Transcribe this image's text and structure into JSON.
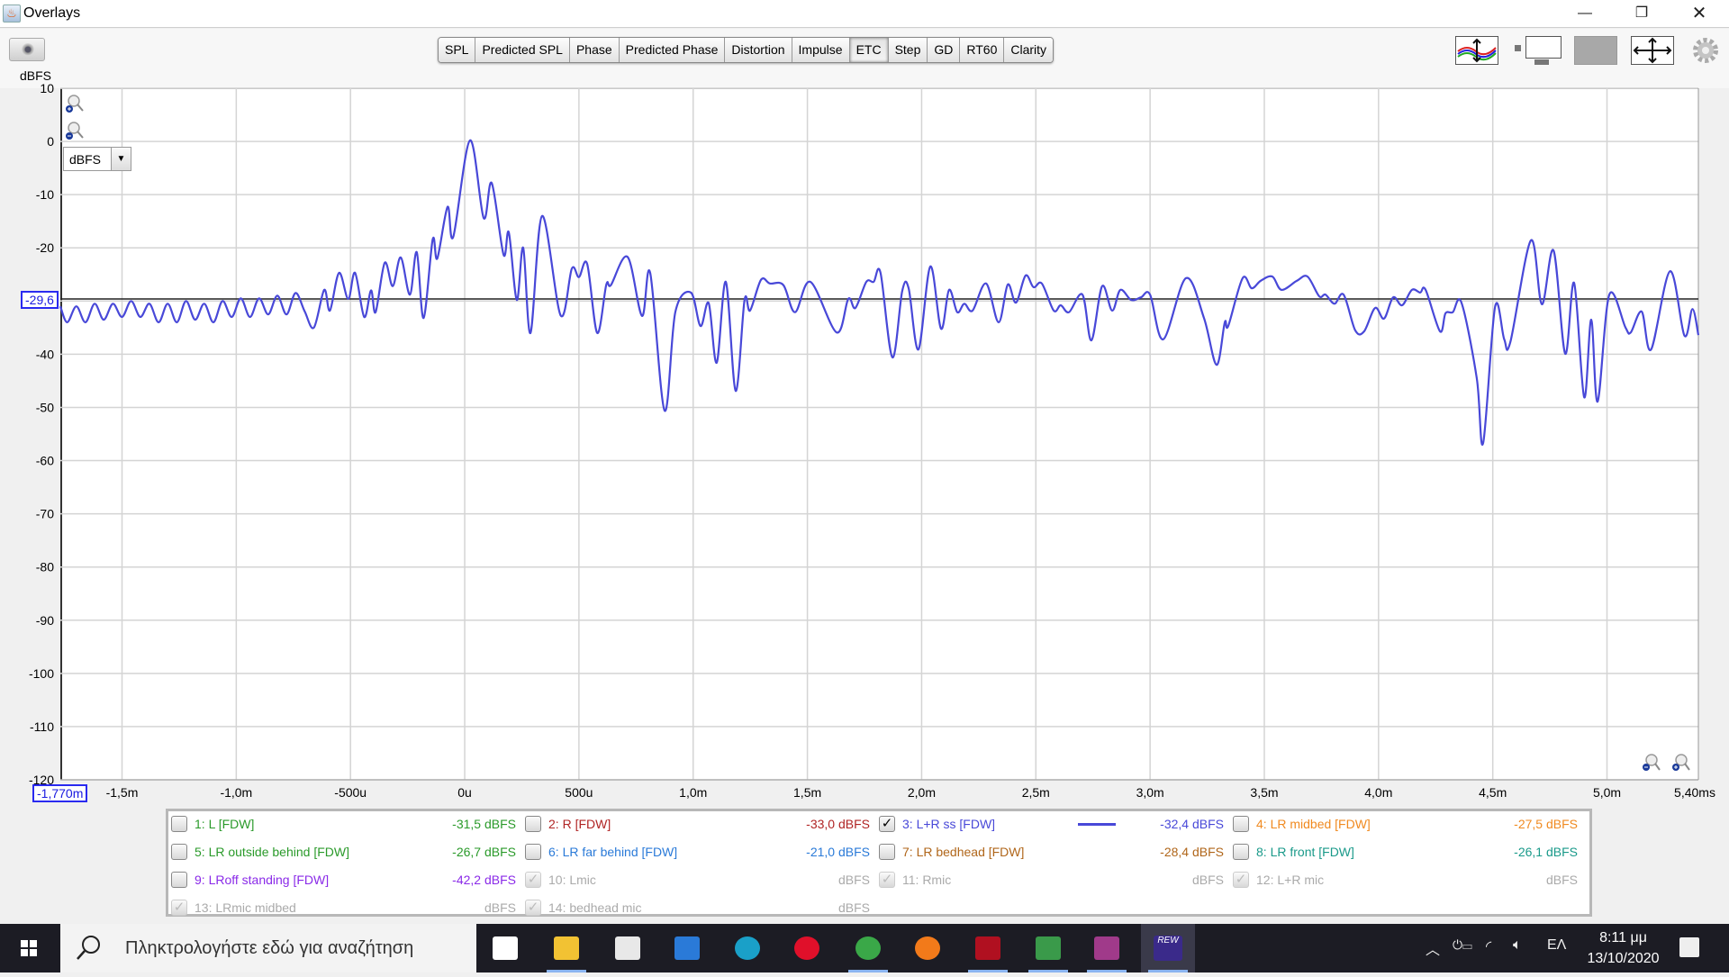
{
  "window": {
    "title": "Overlays",
    "controls": [
      "minimize",
      "restore",
      "close"
    ]
  },
  "toolbar": {
    "tabs": [
      "SPL",
      "Predicted SPL",
      "Phase",
      "Predicted Phase",
      "Distortion",
      "Impulse",
      "ETC",
      "Step",
      "GD",
      "RT60",
      "Clarity"
    ],
    "active_tab": "ETC",
    "right_icons": [
      "vertical-scale-icon",
      "axis-limits-icon",
      "columns-icon",
      "fit-all-icon",
      "gear-icon"
    ]
  },
  "graph": {
    "unit_select": "dBFS",
    "y_cursor": "-29,6",
    "x_cursor": "-1,770m"
  },
  "chart_data": {
    "type": "line",
    "ylabel": "dBFS",
    "ylim": [
      -120,
      10
    ],
    "xlim": [
      -1.77,
      5.4
    ],
    "x_unit": "ms",
    "grid": true,
    "yticks": [
      10,
      0,
      -10,
      -20,
      -30,
      -40,
      -50,
      -60,
      -70,
      -80,
      -90,
      -100,
      -110,
      -120
    ],
    "ytick_labels": [
      "10",
      "0",
      "-10",
      "-20",
      "",
      "-40",
      "-50",
      "-60",
      "-70",
      "-80",
      "-90",
      "-100",
      "-110",
      "-120"
    ],
    "xticks": [
      -1.5,
      -1.0,
      -0.5,
      0,
      0.5,
      1.0,
      1.5,
      2.0,
      2.5,
      3.0,
      3.5,
      4.0,
      4.5,
      5.0,
      5.4
    ],
    "xtick_labels": [
      "-1,5m",
      "-1,0m",
      "-500u",
      "0u",
      "500u",
      "1,0m",
      "1,5m",
      "2,0m",
      "2,5m",
      "3,0m",
      "3,5m",
      "4,0m",
      "4,5m",
      "5,0m",
      "5,40ms"
    ],
    "cursor_y": -29.6,
    "series": [
      {
        "color": "#4848d8",
        "points": [
          [
            -1.77,
            -31
          ],
          [
            -1.74,
            -34
          ],
          [
            -1.7,
            -31
          ],
          [
            -1.66,
            -34
          ],
          [
            -1.62,
            -30.5
          ],
          [
            -1.58,
            -33.5
          ],
          [
            -1.54,
            -30.5
          ],
          [
            -1.5,
            -33
          ],
          [
            -1.46,
            -30
          ],
          [
            -1.42,
            -33
          ],
          [
            -1.38,
            -30.5
          ],
          [
            -1.34,
            -34
          ],
          [
            -1.3,
            -30.5
          ],
          [
            -1.26,
            -34
          ],
          [
            -1.22,
            -30
          ],
          [
            -1.18,
            -33.5
          ],
          [
            -1.14,
            -30.5
          ],
          [
            -1.1,
            -34
          ],
          [
            -1.06,
            -30
          ],
          [
            -1.02,
            -33
          ],
          [
            -0.98,
            -29.5
          ],
          [
            -0.94,
            -33
          ],
          [
            -0.9,
            -29.5
          ],
          [
            -0.86,
            -32.5
          ],
          [
            -0.82,
            -29
          ],
          [
            -0.78,
            -32.5
          ],
          [
            -0.74,
            -28.5
          ],
          [
            -0.7,
            -32
          ],
          [
            -0.66,
            -35
          ],
          [
            -0.615,
            -27.9
          ],
          [
            -0.59,
            -31.8
          ],
          [
            -0.55,
            -24.7
          ],
          [
            -0.51,
            -29.6
          ],
          [
            -0.48,
            -24.7
          ],
          [
            -0.44,
            -33
          ],
          [
            -0.41,
            -28
          ],
          [
            -0.39,
            -32.1
          ],
          [
            -0.35,
            -22.8
          ],
          [
            -0.315,
            -27.2
          ],
          [
            -0.28,
            -21.8
          ],
          [
            -0.24,
            -28.8
          ],
          [
            -0.21,
            -20.8
          ],
          [
            -0.18,
            -33.2
          ],
          [
            -0.14,
            -18.4
          ],
          [
            -0.12,
            -22
          ],
          [
            -0.075,
            -12.3
          ],
          [
            -0.05,
            -17.9
          ],
          [
            0.023,
            0.2
          ],
          [
            0.083,
            -14.4
          ],
          [
            0.118,
            -7.8
          ],
          [
            0.17,
            -21.3
          ],
          [
            0.193,
            -17.1
          ],
          [
            0.228,
            -29.8
          ],
          [
            0.256,
            -20
          ],
          [
            0.288,
            -36
          ],
          [
            0.339,
            -14
          ],
          [
            0.42,
            -32.7
          ],
          [
            0.469,
            -23.9
          ],
          [
            0.5,
            -25.5
          ],
          [
            0.536,
            -23
          ],
          [
            0.58,
            -36
          ],
          [
            0.62,
            -26.9
          ],
          [
            0.64,
            -27
          ],
          [
            0.713,
            -21.7
          ],
          [
            0.776,
            -32.8
          ],
          [
            0.812,
            -24.7
          ],
          [
            0.875,
            -50.6
          ],
          [
            0.922,
            -32.1
          ],
          [
            0.99,
            -28.4
          ],
          [
            1.032,
            -34.7
          ],
          [
            1.068,
            -30.4
          ],
          [
            1.103,
            -41.6
          ],
          [
            1.143,
            -26.4
          ],
          [
            1.186,
            -46.9
          ],
          [
            1.225,
            -29.8
          ],
          [
            1.249,
            -31.8
          ],
          [
            1.297,
            -26
          ],
          [
            1.336,
            -26.7
          ],
          [
            1.395,
            -27
          ],
          [
            1.446,
            -32.1
          ],
          [
            1.513,
            -26.4
          ],
          [
            1.628,
            -35.9
          ],
          [
            1.679,
            -29.6
          ],
          [
            1.71,
            -31.3
          ],
          [
            1.758,
            -26.4
          ],
          [
            1.79,
            -26.4
          ],
          [
            1.82,
            -24.7
          ],
          [
            1.872,
            -40.6
          ],
          [
            1.915,
            -28.1
          ],
          [
            1.943,
            -27.6
          ],
          [
            1.986,
            -39.1
          ],
          [
            2.038,
            -23.5
          ],
          [
            2.085,
            -35.2
          ],
          [
            2.12,
            -27.9
          ],
          [
            2.156,
            -32.1
          ],
          [
            2.187,
            -30.5
          ],
          [
            2.223,
            -31.8
          ],
          [
            2.282,
            -26.7
          ],
          [
            2.337,
            -34
          ],
          [
            2.377,
            -26.9
          ],
          [
            2.413,
            -30.3
          ],
          [
            2.455,
            -25.2
          ],
          [
            2.49,
            -27.4
          ],
          [
            2.526,
            -26.7
          ],
          [
            2.578,
            -31.8
          ],
          [
            2.609,
            -30.8
          ],
          [
            2.645,
            -32.1
          ],
          [
            2.704,
            -28.8
          ],
          [
            2.743,
            -37.4
          ],
          [
            2.79,
            -27.2
          ],
          [
            2.834,
            -31.8
          ],
          [
            2.87,
            -27.9
          ],
          [
            2.917,
            -29.8
          ],
          [
            2.96,
            -29.3
          ],
          [
            3.0,
            -28.8
          ],
          [
            3.058,
            -37.2
          ],
          [
            3.157,
            -25.7
          ],
          [
            3.236,
            -33.2
          ],
          [
            3.291,
            -42
          ],
          [
            3.327,
            -34
          ],
          [
            3.342,
            -34.7
          ],
          [
            3.405,
            -25.7
          ],
          [
            3.445,
            -27.6
          ],
          [
            3.484,
            -26.2
          ],
          [
            3.535,
            -25.4
          ],
          [
            3.575,
            -27.9
          ],
          [
            3.642,
            -26.2
          ],
          [
            3.689,
            -25.4
          ],
          [
            3.74,
            -29.1
          ],
          [
            3.768,
            -28.8
          ],
          [
            3.807,
            -30.5
          ],
          [
            3.847,
            -28.8
          ],
          [
            3.898,
            -35.5
          ],
          [
            3.937,
            -35.7
          ],
          [
            3.985,
            -31.3
          ],
          [
            4.024,
            -33.3
          ],
          [
            4.064,
            -29.3
          ],
          [
            4.103,
            -30.8
          ],
          [
            4.146,
            -27.9
          ],
          [
            4.182,
            -28.4
          ],
          [
            4.206,
            -27.9
          ],
          [
            4.269,
            -35.7
          ],
          [
            4.293,
            -32.3
          ],
          [
            4.325,
            -32.1
          ],
          [
            4.363,
            -30.3
          ],
          [
            4.43,
            -44.5
          ],
          [
            4.458,
            -56.7
          ],
          [
            4.51,
            -31.1
          ],
          [
            4.55,
            -37.2
          ],
          [
            4.577,
            -37.7
          ],
          [
            4.667,
            -18.6
          ],
          [
            4.715,
            -30.6
          ],
          [
            4.766,
            -20.5
          ],
          [
            4.817,
            -39.9
          ],
          [
            4.856,
            -26.6
          ],
          [
            4.9,
            -48.1
          ],
          [
            4.931,
            -33.5
          ],
          [
            4.959,
            -48.9
          ],
          [
            5.01,
            -28.8
          ],
          [
            5.081,
            -35
          ],
          [
            5.104,
            -35.9
          ],
          [
            5.152,
            -32
          ],
          [
            5.193,
            -39.1
          ],
          [
            5.276,
            -24.4
          ],
          [
            5.339,
            -36.5
          ],
          [
            5.374,
            -31.5
          ],
          [
            5.4,
            -36.4
          ]
        ]
      }
    ]
  },
  "legend": {
    "items": [
      {
        "label": "1: L [FDW]",
        "value": "-31,5 dBFS",
        "color": "#2a9a2a",
        "checked": false,
        "disabled": false
      },
      {
        "label": "2: R [FDW]",
        "value": "-33,0 dBFS",
        "color": "#b02424",
        "checked": false,
        "disabled": false
      },
      {
        "label": "3: L+R ss [FDW]",
        "value": "-32,4 dBFS",
        "color": "#4848d8",
        "checked": true,
        "disabled": false,
        "swatch": true
      },
      {
        "label": "4: LR midbed [FDW]",
        "value": "-27,5 dBFS",
        "color": "#f08a20",
        "checked": false,
        "disabled": false
      },
      {
        "label": "5: LR outside behind [FDW]",
        "value": "-26,7 dBFS",
        "color": "#2a9a2a",
        "checked": false,
        "disabled": false
      },
      {
        "label": "6: LR far behind [FDW]",
        "value": "-21,0 dBFS",
        "color": "#2a7ad8",
        "checked": false,
        "disabled": false
      },
      {
        "label": "7: LR bedhead [FDW]",
        "value": "-28,4 dBFS",
        "color": "#b0661a",
        "checked": false,
        "disabled": false
      },
      {
        "label": "8: LR front [FDW]",
        "value": "-26,1 dBFS",
        "color": "#1a9a8a",
        "checked": false,
        "disabled": false
      },
      {
        "label": "9: LRoff standing [FDW]",
        "value": "-42,2 dBFS",
        "color": "#8a2ae8",
        "checked": false,
        "disabled": false
      },
      {
        "label": "10: Lmic",
        "value": "dBFS",
        "color": "#aaaaaa",
        "checked": true,
        "disabled": true
      },
      {
        "label": "11: Rmic",
        "value": "dBFS",
        "color": "#aaaaaa",
        "checked": true,
        "disabled": true
      },
      {
        "label": "12: L+R mic",
        "value": "dBFS",
        "color": "#aaaaaa",
        "checked": true,
        "disabled": true
      },
      {
        "label": "13: LRmic midbed",
        "value": "dBFS",
        "color": "#aaaaaa",
        "checked": true,
        "disabled": true
      },
      {
        "label": "14: bedhead mic",
        "value": "dBFS",
        "color": "#aaaaaa",
        "checked": true,
        "disabled": true
      }
    ]
  },
  "taskbar": {
    "search_placeholder": "Πληκτρολογήστε εδώ για αναζήτηση",
    "apps": [
      {
        "name": "task-view",
        "color": "#ffffff"
      },
      {
        "name": "file-explorer",
        "color": "#f2c233"
      },
      {
        "name": "microsoft-store",
        "color": "#e8e8e8"
      },
      {
        "name": "mail",
        "color": "#2a7ad8"
      },
      {
        "name": "edge",
        "color": "#1aa0c8"
      },
      {
        "name": "opera",
        "color": "#e0102a"
      },
      {
        "name": "chrome",
        "color": "#3aa848"
      },
      {
        "name": "firefox",
        "color": "#f27a1a"
      },
      {
        "name": "dotted-app",
        "color": "#b01020"
      },
      {
        "name": "spreadsheet-app",
        "color": "#3a9a4a"
      },
      {
        "name": "winrar",
        "color": "#a03a8a"
      },
      {
        "name": "REW",
        "color": "#3a2a8a"
      }
    ],
    "rew_label": "REW",
    "language": "ΕΛ",
    "time": "8:11 μμ",
    "date": "13/10/2020"
  }
}
